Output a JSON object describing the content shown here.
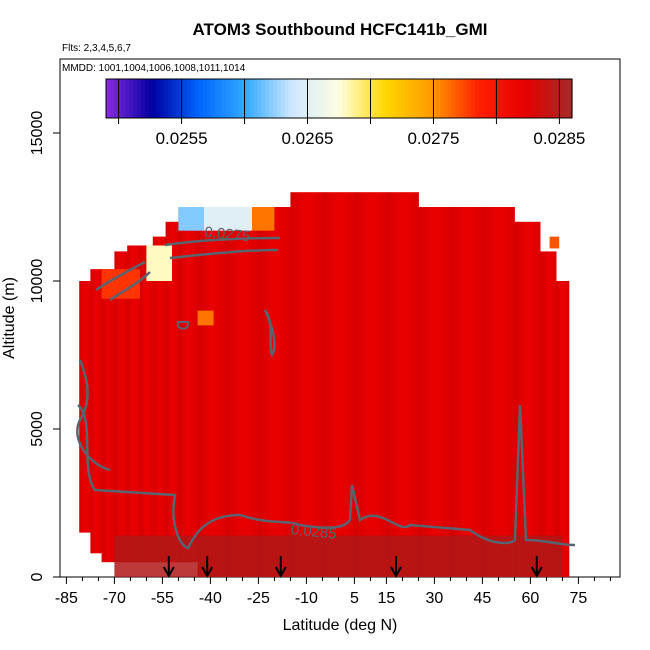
{
  "chart_data": {
    "type": "heatmap",
    "title": "ATOM3 Southbound HCFC141b_GMI",
    "subtitle_flights": "Flts: 2,3,4,5,6,7",
    "subtitle_dates": "MMDD: 1001,1004,1006,1008,1011,1014",
    "xlabel": "Latitude (deg N)",
    "ylabel": "Altitude (m)",
    "xlim": [
      -87,
      88
    ],
    "ylim": [
      0,
      17500
    ],
    "x_ticks": [
      -85,
      -70,
      -55,
      -40,
      -25,
      -10,
      5,
      15,
      30,
      45,
      60,
      75
    ],
    "x_tick_labels": [
      "-85",
      "-70",
      "-55",
      "-40",
      "-25",
      "-10",
      "5",
      "15",
      "30",
      "45",
      "60",
      "75"
    ],
    "y_ticks": [
      0,
      5000,
      10000,
      15000
    ],
    "y_tick_labels": [
      "0",
      "5000",
      "10000",
      "15000"
    ],
    "colorbar": {
      "range": [
        0.0249,
        0.0286
      ],
      "ticks": [
        0.0255,
        0.0265,
        0.0275,
        0.0285
      ],
      "tick_labels": [
        "0.0255",
        "0.0265",
        "0.0275",
        "0.0285"
      ],
      "colors": [
        "#8a2be2",
        "#0000a0",
        "#0066ff",
        "#33aaff",
        "#cfe8ff",
        "#ffffe0",
        "#ffd700",
        "#ff9900",
        "#ff2000",
        "#e60000",
        "#a52a2a"
      ]
    },
    "contour_labels": [
      {
        "text": "0.0275",
        "lat": -42,
        "alt": 11500
      },
      {
        "text": "0.0285",
        "lat": -15,
        "alt": 1450
      }
    ],
    "flight_profile_markers_lat": [
      -53,
      -41,
      -18,
      18,
      62
    ],
    "field_columns": [
      {
        "lat": -79,
        "alt_min": 1500,
        "alt_max": 10000
      },
      {
        "lat": -76,
        "alt_min": 800,
        "alt_max": 10400
      },
      {
        "lat": -72,
        "alt_min": 500,
        "alt_max": 10400
      },
      {
        "lat": -68,
        "alt_min": 500,
        "alt_max": 11000
      },
      {
        "lat": -64,
        "alt_min": 500,
        "alt_max": 11200
      },
      {
        "lat": -60,
        "alt_min": 500,
        "alt_max": 11200
      },
      {
        "lat": -56,
        "alt_min": 500,
        "alt_max": 11500
      },
      {
        "lat": -52,
        "alt_min": 500,
        "alt_max": 12000
      },
      {
        "lat": -48,
        "alt_min": 500,
        "alt_max": 12500
      },
      {
        "lat": -40,
        "alt_min": 0,
        "alt_max": 12500
      },
      {
        "lat": -30,
        "alt_min": 0,
        "alt_max": 12500
      },
      {
        "lat": -20,
        "alt_min": 0,
        "alt_max": 12500
      },
      {
        "lat": -10,
        "alt_min": 0,
        "alt_max": 13000
      },
      {
        "lat": 0,
        "alt_min": 0,
        "alt_max": 13000
      },
      {
        "lat": 10,
        "alt_min": 0,
        "alt_max": 13000
      },
      {
        "lat": 20,
        "alt_min": 0,
        "alt_max": 13000
      },
      {
        "lat": 30,
        "alt_min": 0,
        "alt_max": 12500
      },
      {
        "lat": 40,
        "alt_min": 0,
        "alt_max": 12500
      },
      {
        "lat": 50,
        "alt_min": 0,
        "alt_max": 12500
      },
      {
        "lat": 60,
        "alt_min": 0,
        "alt_max": 12000
      },
      {
        "lat": 66,
        "alt_min": 0,
        "alt_max": 11000
      },
      {
        "lat": 70,
        "alt_min": 0,
        "alt_max": 10000
      }
    ],
    "low_value_patches": [
      {
        "lat_min": -42,
        "lat_max": -27,
        "alt_min": 11700,
        "alt_max": 12500,
        "value": 0.0265
      },
      {
        "lat_min": -50,
        "lat_max": -42,
        "alt_min": 11700,
        "alt_max": 12500,
        "value": 0.0262
      },
      {
        "lat_min": -27,
        "lat_max": -20,
        "alt_min": 11700,
        "alt_max": 12500,
        "value": 0.0276
      },
      {
        "lat_min": -60,
        "lat_max": -52,
        "alt_min": 10000,
        "alt_max": 11200,
        "value": 0.0268
      },
      {
        "lat_min": -74,
        "lat_max": -62,
        "alt_min": 9400,
        "alt_max": 10400,
        "value": 0.0278
      },
      {
        "lat_min": -44,
        "lat_max": -39,
        "alt_min": 8500,
        "alt_max": 9000,
        "value": 0.0276
      },
      {
        "lat_min": 66,
        "lat_max": 69,
        "alt_min": 11100,
        "alt_max": 11500,
        "value": 0.0277
      }
    ]
  }
}
